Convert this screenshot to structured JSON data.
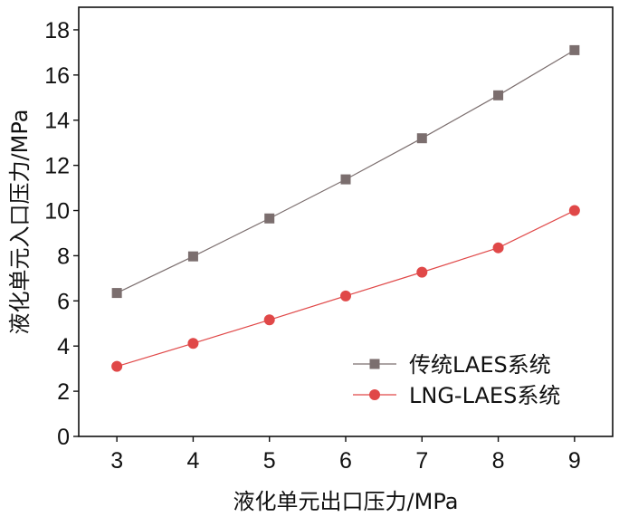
{
  "chart_data": {
    "type": "line",
    "xlabel": "液化单元出口压力/MPa",
    "ylabel": "液化单元入口压力/MPa",
    "x": [
      3,
      4,
      5,
      6,
      7,
      8,
      9
    ],
    "xlim": [
      2.5,
      9.5
    ],
    "ylim": [
      0,
      19
    ],
    "xticks": [
      3,
      4,
      5,
      6,
      7,
      8,
      9
    ],
    "yticks": [
      0,
      2,
      4,
      6,
      8,
      10,
      12,
      14,
      16,
      18
    ],
    "grid": false,
    "legend_position": "bottom-right",
    "series": [
      {
        "name": "传统LAES系统",
        "values": [
          6.35,
          7.97,
          9.65,
          11.38,
          13.2,
          15.1,
          17.1
        ],
        "color": "#7b6e6e",
        "marker": "square"
      },
      {
        "name": "LNG-LAES系统",
        "values": [
          3.1,
          4.12,
          5.16,
          6.22,
          7.27,
          8.35,
          10.0
        ],
        "color": "#e04848",
        "marker": "circle"
      }
    ]
  }
}
